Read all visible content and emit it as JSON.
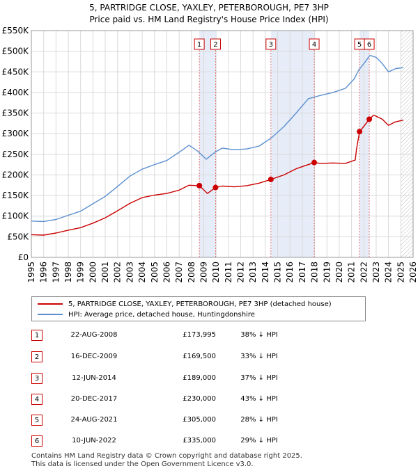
{
  "chart_data": {
    "type": "line",
    "title": "5, PARTRIDGE CLOSE, YAXLEY, PETERBOROUGH, PE7 3HP",
    "subtitle": "Price paid vs. HM Land Registry's House Price Index (HPI)",
    "xlim": [
      1995,
      2026
    ],
    "ylim": [
      0,
      550000
    ],
    "x_ticks": [
      "1995",
      "1996",
      "1997",
      "1998",
      "1999",
      "2000",
      "2001",
      "2002",
      "2003",
      "2004",
      "2005",
      "2006",
      "2007",
      "2008",
      "2009",
      "2010",
      "2011",
      "2012",
      "2013",
      "2014",
      "2015",
      "2016",
      "2017",
      "2018",
      "2019",
      "2020",
      "2021",
      "2022",
      "2023",
      "2024",
      "2025",
      "2026"
    ],
    "y_ticks": [
      {
        "value": 0,
        "label": "£0"
      },
      {
        "value": 50000,
        "label": "£50K"
      },
      {
        "value": 100000,
        "label": "£100K"
      },
      {
        "value": 150000,
        "label": "£150K"
      },
      {
        "value": 200000,
        "label": "£200K"
      },
      {
        "value": 250000,
        "label": "£250K"
      },
      {
        "value": 300000,
        "label": "£300K"
      },
      {
        "value": 350000,
        "label": "£350K"
      },
      {
        "value": 400000,
        "label": "£400K"
      },
      {
        "value": 450000,
        "label": "£450K"
      },
      {
        "value": 500000,
        "label": "£500K"
      },
      {
        "value": 550000,
        "label": "£550K"
      }
    ],
    "grid": true,
    "future_hatch_from": 2025.0,
    "series": [
      {
        "name": "5, PARTRIDGE CLOSE, YAXLEY, PETERBOROUGH, PE7 3HP (detached house)",
        "color": "#cc0000",
        "points": [
          [
            1995.0,
            55000
          ],
          [
            1996.0,
            54000
          ],
          [
            1997.0,
            59000
          ],
          [
            1998.0,
            66000
          ],
          [
            1999.0,
            72000
          ],
          [
            2000.0,
            83000
          ],
          [
            2001.0,
            96000
          ],
          [
            2002.0,
            113000
          ],
          [
            2003.0,
            131000
          ],
          [
            2004.0,
            145000
          ],
          [
            2005.0,
            151000
          ],
          [
            2006.0,
            155000
          ],
          [
            2007.0,
            163000
          ],
          [
            2007.8,
            175000
          ],
          [
            2008.64,
            173995
          ],
          [
            2009.3,
            155000
          ],
          [
            2009.96,
            169500
          ],
          [
            2010.5,
            173000
          ],
          [
            2011.5,
            171000
          ],
          [
            2012.5,
            174000
          ],
          [
            2013.5,
            180000
          ],
          [
            2014.45,
            189000
          ],
          [
            2015.5,
            200000
          ],
          [
            2016.5,
            215000
          ],
          [
            2017.5,
            225000
          ],
          [
            2017.97,
            230000
          ],
          [
            2018.5,
            228000
          ],
          [
            2019.5,
            229000
          ],
          [
            2020.5,
            228000
          ],
          [
            2021.3,
            236000
          ],
          [
            2021.4,
            262000
          ],
          [
            2021.65,
            305000
          ],
          [
            2022.0,
            318000
          ],
          [
            2022.44,
            335000
          ],
          [
            2022.8,
            345000
          ],
          [
            2023.5,
            335000
          ],
          [
            2024.0,
            320000
          ],
          [
            2024.5,
            328000
          ],
          [
            2025.2,
            333000
          ]
        ]
      },
      {
        "name": "HPI: Average price, detached house, Huntingdonshire",
        "color": "#5b8fd0",
        "points": [
          [
            1995.0,
            88000
          ],
          [
            1996.0,
            87000
          ],
          [
            1997.0,
            92000
          ],
          [
            1998.0,
            102000
          ],
          [
            1999.0,
            112000
          ],
          [
            2000.0,
            130000
          ],
          [
            2001.0,
            148000
          ],
          [
            2002.0,
            172000
          ],
          [
            2003.0,
            197000
          ],
          [
            2004.0,
            214000
          ],
          [
            2005.0,
            225000
          ],
          [
            2006.0,
            235000
          ],
          [
            2007.0,
            255000
          ],
          [
            2007.8,
            272000
          ],
          [
            2008.5,
            258000
          ],
          [
            2009.2,
            238000
          ],
          [
            2009.9,
            255000
          ],
          [
            2010.5,
            265000
          ],
          [
            2011.5,
            261000
          ],
          [
            2012.5,
            263000
          ],
          [
            2013.5,
            270000
          ],
          [
            2014.5,
            290000
          ],
          [
            2015.5,
            317000
          ],
          [
            2016.5,
            350000
          ],
          [
            2017.5,
            385000
          ],
          [
            2018.5,
            393000
          ],
          [
            2019.5,
            400000
          ],
          [
            2020.5,
            410000
          ],
          [
            2021.2,
            432000
          ],
          [
            2021.6,
            455000
          ],
          [
            2022.0,
            470000
          ],
          [
            2022.5,
            490000
          ],
          [
            2023.0,
            485000
          ],
          [
            2023.5,
            470000
          ],
          [
            2024.0,
            450000
          ],
          [
            2024.6,
            458000
          ],
          [
            2025.2,
            460000
          ]
        ]
      }
    ],
    "sales": [
      {
        "id": "1",
        "x": 2008.64,
        "price": 173995
      },
      {
        "id": "2",
        "x": 2009.96,
        "price": 169500
      },
      {
        "id": "3",
        "x": 2014.45,
        "price": 189000
      },
      {
        "id": "4",
        "x": 2017.97,
        "price": 230000
      },
      {
        "id": "5",
        "x": 2021.65,
        "price": 305000
      },
      {
        "id": "6",
        "x": 2022.44,
        "price": 335000
      }
    ],
    "shaded_periods": [
      [
        2008.64,
        2009.96
      ],
      [
        2014.45,
        2017.97
      ],
      [
        2021.65,
        2022.44
      ]
    ]
  },
  "legend": {
    "property_label": "5, PARTRIDGE CLOSE, YAXLEY, PETERBOROUGH, PE7 3HP (detached house)",
    "hpi_label": "HPI: Average price, detached house, Huntingdonshire",
    "property_color": "#cc0000",
    "hpi_color": "#5b8fd0"
  },
  "transactions": [
    {
      "num": "1",
      "date": "22-AUG-2008",
      "price": "£173,995",
      "hpi": "38% ↓ HPI"
    },
    {
      "num": "2",
      "date": "16-DEC-2009",
      "price": "£169,500",
      "hpi": "33% ↓ HPI"
    },
    {
      "num": "3",
      "date": "12-JUN-2014",
      "price": "£189,000",
      "hpi": "37% ↓ HPI"
    },
    {
      "num": "4",
      "date": "20-DEC-2017",
      "price": "£230,000",
      "hpi": "43% ↓ HPI"
    },
    {
      "num": "5",
      "date": "24-AUG-2021",
      "price": "£305,000",
      "hpi": "28% ↓ HPI"
    },
    {
      "num": "6",
      "date": "10-JUN-2022",
      "price": "£335,000",
      "hpi": "29% ↓ HPI"
    }
  ],
  "footer": {
    "line1": "Contains HM Land Registry data © Crown copyright and database right 2025.",
    "line2": "This data is licensed under the Open Government Licence v3.0."
  }
}
